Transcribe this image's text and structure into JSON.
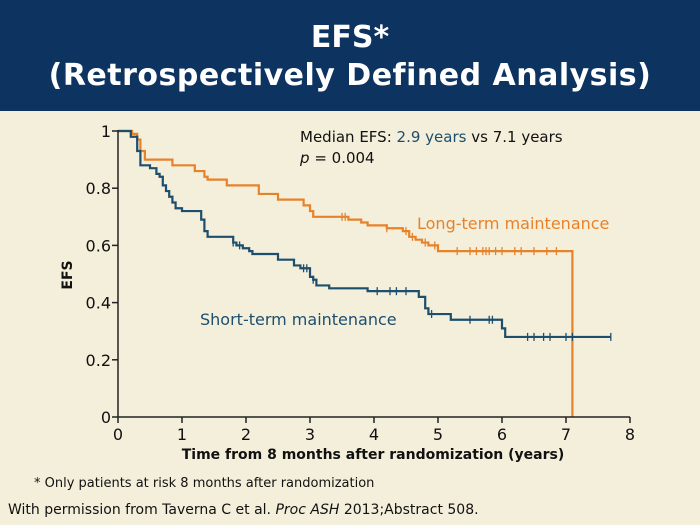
{
  "slide": {
    "title_line1": "EFS*",
    "title_line2": "(Retrospectively Defined Analysis)",
    "footnote_marker": "*",
    "footnote_text": "Only patients at risk 8 months after randomization",
    "source_prefix": "With permission from Taverna C et al.",
    "source_journal": "Proc ASH",
    "source_suffix": "2013;Abstract 508."
  },
  "colors": {
    "header_bg": "#0d3460",
    "background": "#f3efdb",
    "long_term": "#e8822a",
    "short_term": "#1d4e6e",
    "axis": "#222222"
  },
  "chart_data": {
    "type": "line",
    "title": "",
    "xlabel": "Time from 8 months after randomization (years)",
    "ylabel": "EFS",
    "xlim": [
      0,
      8
    ],
    "ylim": [
      0,
      1
    ],
    "xticks": [
      0,
      1,
      2,
      3,
      4,
      5,
      6,
      7,
      8
    ],
    "yticks": [
      0,
      0.2,
      0.4,
      0.6,
      0.8,
      1
    ],
    "ytick_labels": [
      "0",
      "0.2",
      "0.4",
      "0.6",
      "0.8",
      "1"
    ],
    "grid": false,
    "annotations": {
      "median_label": "Median EFS:",
      "median_short": "2.9 years",
      "median_vs": "vs",
      "median_long": "7.1 years",
      "p_symbol": "p",
      "p_value": "= 0.004"
    },
    "series": [
      {
        "name": "Long-term maintenance",
        "step": [
          [
            0,
            1
          ],
          [
            0.22,
            0.99
          ],
          [
            0.3,
            0.97
          ],
          [
            0.35,
            0.93
          ],
          [
            0.42,
            0.9
          ],
          [
            0.85,
            0.88
          ],
          [
            1.2,
            0.86
          ],
          [
            1.35,
            0.84
          ],
          [
            1.4,
            0.83
          ],
          [
            1.7,
            0.81
          ],
          [
            2.2,
            0.78
          ],
          [
            2.5,
            0.76
          ],
          [
            2.9,
            0.74
          ],
          [
            3.0,
            0.72
          ],
          [
            3.05,
            0.7
          ],
          [
            3.6,
            0.69
          ],
          [
            3.8,
            0.68
          ],
          [
            3.9,
            0.67
          ],
          [
            4.2,
            0.66
          ],
          [
            4.45,
            0.65
          ],
          [
            4.55,
            0.63
          ],
          [
            4.65,
            0.62
          ],
          [
            4.75,
            0.61
          ],
          [
            4.85,
            0.6
          ],
          [
            5.0,
            0.58
          ],
          [
            7.1,
            0.58
          ],
          [
            7.1,
            0
          ]
        ],
        "censor": [
          3.5,
          3.55,
          4.2,
          4.5,
          4.6,
          4.8,
          4.95,
          5.3,
          5.5,
          5.6,
          5.7,
          5.75,
          5.8,
          5.9,
          6.0,
          6.2,
          6.3,
          6.5,
          6.7,
          6.85
        ]
      },
      {
        "name": "Short-term maintenance",
        "step": [
          [
            0,
            1
          ],
          [
            0.2,
            0.98
          ],
          [
            0.3,
            0.93
          ],
          [
            0.35,
            0.88
          ],
          [
            0.5,
            0.87
          ],
          [
            0.6,
            0.85
          ],
          [
            0.65,
            0.84
          ],
          [
            0.7,
            0.81
          ],
          [
            0.75,
            0.79
          ],
          [
            0.8,
            0.77
          ],
          [
            0.85,
            0.75
          ],
          [
            0.9,
            0.73
          ],
          [
            1.0,
            0.72
          ],
          [
            1.3,
            0.69
          ],
          [
            1.35,
            0.65
          ],
          [
            1.4,
            0.63
          ],
          [
            1.8,
            0.61
          ],
          [
            1.85,
            0.6
          ],
          [
            1.95,
            0.59
          ],
          [
            2.05,
            0.58
          ],
          [
            2.1,
            0.57
          ],
          [
            2.5,
            0.55
          ],
          [
            2.75,
            0.53
          ],
          [
            2.85,
            0.52
          ],
          [
            3.0,
            0.49
          ],
          [
            3.05,
            0.48
          ],
          [
            3.1,
            0.46
          ],
          [
            3.3,
            0.45
          ],
          [
            3.9,
            0.44
          ],
          [
            4.7,
            0.42
          ],
          [
            4.8,
            0.38
          ],
          [
            4.85,
            0.36
          ],
          [
            5.2,
            0.34
          ],
          [
            6.0,
            0.31
          ],
          [
            6.05,
            0.28
          ],
          [
            7.7,
            0.28
          ]
        ],
        "censor": [
          1.8,
          1.9,
          2.9,
          2.95,
          3.05,
          4.05,
          4.25,
          4.35,
          4.5,
          4.9,
          5.5,
          5.8,
          5.85,
          6.4,
          6.5,
          6.65,
          6.75,
          7.0,
          7.1,
          7.7
        ]
      }
    ]
  }
}
